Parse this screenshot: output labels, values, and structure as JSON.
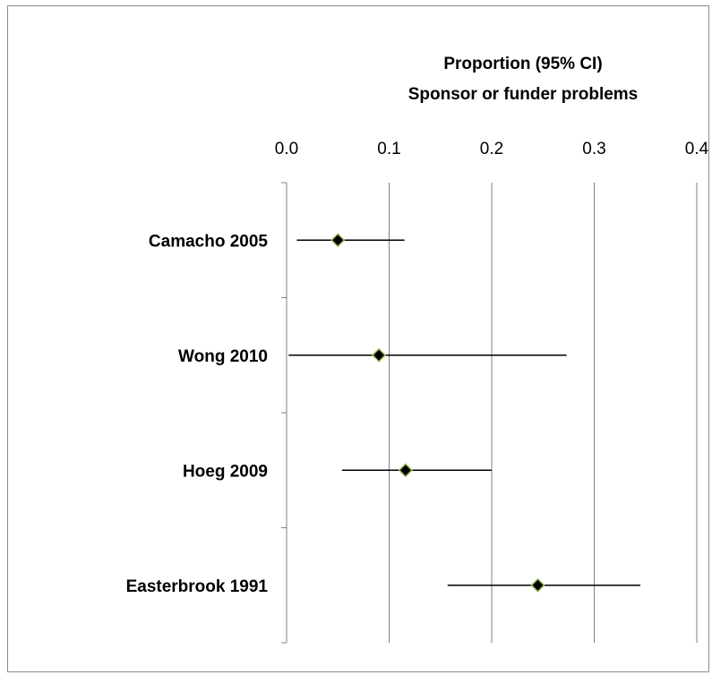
{
  "chart_data": {
    "type": "forest",
    "title_line1": "Proportion (95% CI)",
    "title_line2": "Sponsor or funder problems",
    "x_ticks": [
      "0.0",
      "0.1",
      "0.2",
      "0.3",
      "0.4"
    ],
    "xlim": [
      0,
      0.4
    ],
    "grid": true,
    "studies": [
      {
        "label": "Camacho 2005",
        "estimate": 0.05,
        "ci_low": 0.01,
        "ci_high": 0.115
      },
      {
        "label": "Wong 2010",
        "estimate": 0.09,
        "ci_low": 0.002,
        "ci_high": 0.273
      },
      {
        "label": "Hoeg 2009",
        "estimate": 0.116,
        "ci_low": 0.054,
        "ci_high": 0.2
      },
      {
        "label": "Easterbrook 1991",
        "estimate": 0.245,
        "ci_low": 0.157,
        "ci_high": 0.345
      }
    ],
    "colors": {
      "marker_fill": "#000000",
      "marker_outline": "#9bbb59",
      "ci_line": "#000000",
      "grid": "#808080"
    }
  }
}
